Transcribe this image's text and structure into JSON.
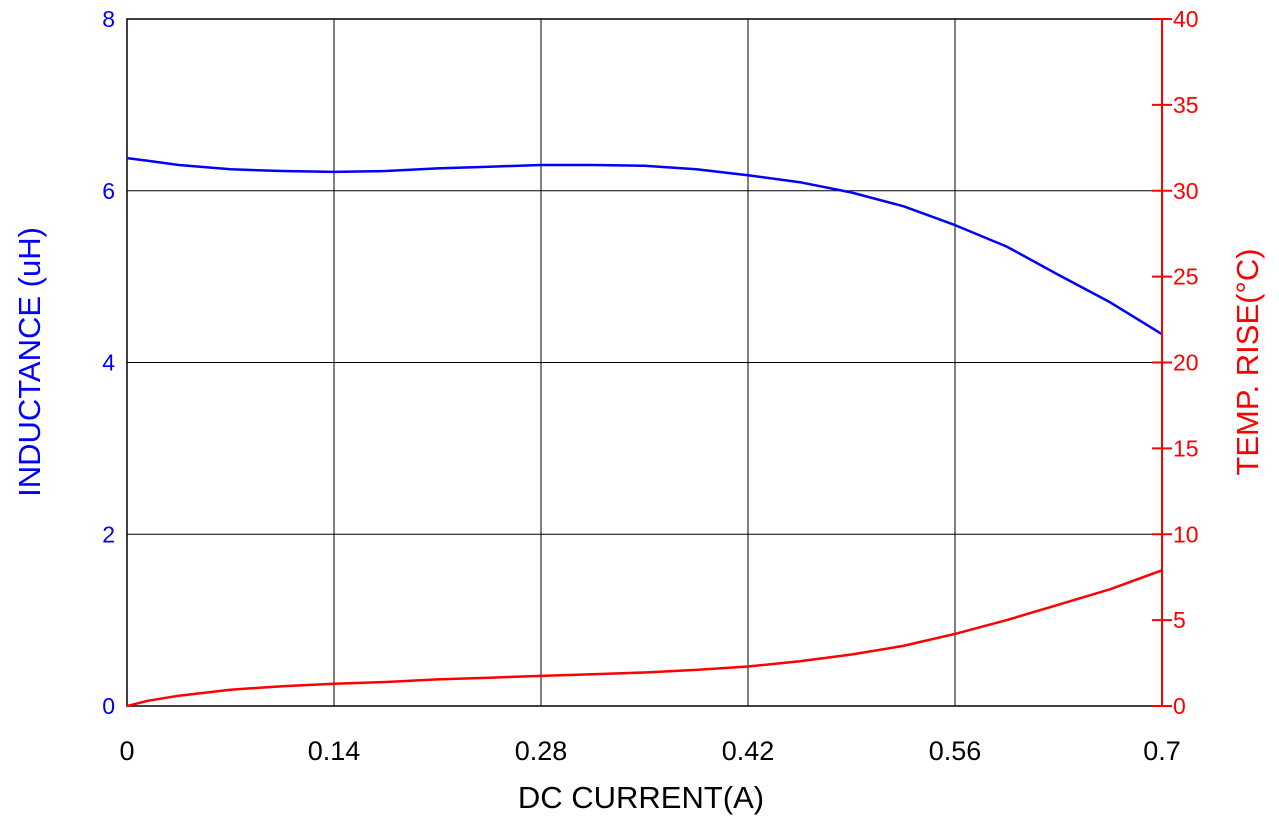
{
  "chart_data": {
    "type": "line",
    "title": "",
    "xlabel": "DC CURRENT(A)",
    "ylabel_left": "INDUCTANCE (uH)",
    "ylabel_right": "TEMP. RISE(°C)",
    "xlim": [
      0,
      0.7
    ],
    "ylim_left": [
      0,
      8
    ],
    "ylim_right": [
      0,
      40
    ],
    "x_ticks": [
      "0",
      "0.14",
      "0.28",
      "0.42",
      "0.56",
      "0.7"
    ],
    "y_left_ticks": [
      "0",
      "2",
      "4",
      "6",
      "8"
    ],
    "y_right_ticks": [
      "0",
      "5",
      "10",
      "15",
      "20",
      "25",
      "30",
      "35",
      "40"
    ],
    "grid": true,
    "colors": {
      "inductance": "#0000ff",
      "temp_rise": "#ff0000",
      "grid": "#000000"
    },
    "series": [
      {
        "axis": "left",
        "x": [
          0,
          0.014,
          0.035,
          0.07,
          0.105,
          0.14,
          0.175,
          0.21,
          0.245,
          0.28,
          0.315,
          0.35,
          0.385,
          0.42,
          0.455,
          0.49,
          0.525,
          0.56,
          0.595,
          0.63,
          0.665,
          0.7
        ],
        "y": [
          6.38,
          6.35,
          6.3,
          6.25,
          6.23,
          6.22,
          6.23,
          6.26,
          6.28,
          6.3,
          6.3,
          6.29,
          6.25,
          6.18,
          6.1,
          5.98,
          5.82,
          5.6,
          5.35,
          5.02,
          4.7,
          4.33
        ]
      },
      {
        "axis": "right",
        "x": [
          0,
          0.014,
          0.035,
          0.07,
          0.105,
          0.14,
          0.175,
          0.21,
          0.245,
          0.28,
          0.315,
          0.35,
          0.385,
          0.42,
          0.455,
          0.49,
          0.525,
          0.56,
          0.595,
          0.63,
          0.665,
          0.7
        ],
        "y": [
          0,
          0.3,
          0.6,
          0.95,
          1.15,
          1.3,
          1.4,
          1.55,
          1.65,
          1.75,
          1.85,
          1.95,
          2.1,
          2.3,
          2.6,
          3.0,
          3.5,
          4.2,
          5.0,
          5.9,
          6.8,
          7.9
        ]
      }
    ]
  }
}
